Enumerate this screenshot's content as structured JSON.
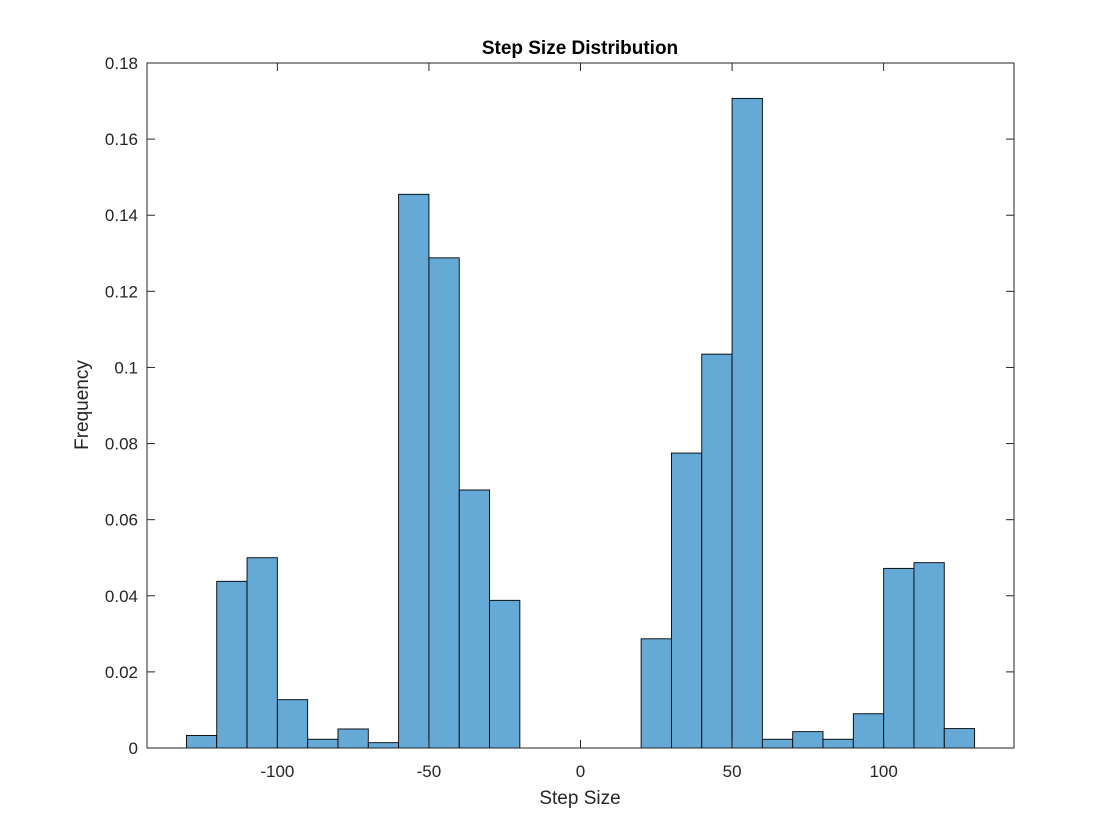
{
  "chart_data": {
    "type": "bar",
    "title": "Step Size Distribution",
    "xlabel": "Step Size",
    "ylabel": "Frequency",
    "xlim": [
      -143,
      143
    ],
    "ylim": [
      0,
      0.18
    ],
    "grid": false,
    "legend": "none",
    "bar_color": "#65a9d7",
    "edge_color": "#000000",
    "bin_width": 10,
    "bin_edges": [
      -130,
      -120,
      -110,
      -100,
      -90,
      -80,
      -70,
      -60,
      -50,
      -40,
      -30,
      -20,
      -10,
      0,
      10,
      20,
      30,
      40,
      50,
      60,
      70,
      80,
      90,
      100,
      110,
      120,
      130
    ],
    "values": [
      0.0033,
      0.0438,
      0.05,
      0.0127,
      0.0023,
      0.005,
      0.0014,
      0.1455,
      0.1288,
      0.0678,
      0.0388,
      0,
      0,
      0,
      0,
      0.0287,
      0.0775,
      0.1035,
      0.1707,
      0.0023,
      0.0043,
      0.0023,
      0.009,
      0.0472,
      0.0487,
      0.0051
    ],
    "x_ticks": [
      -100,
      -50,
      0,
      50,
      100
    ],
    "x_tick_labels": [
      "-100",
      "-50",
      "0",
      "50",
      "100"
    ],
    "y_ticks": [
      0,
      0.02,
      0.04,
      0.06,
      0.08,
      0.1,
      0.12,
      0.14,
      0.16,
      0.18
    ],
    "y_tick_labels": [
      "0",
      "0.02",
      "0.04",
      "0.06",
      "0.08",
      "0.1",
      "0.12",
      "0.14",
      "0.16",
      "0.18"
    ]
  }
}
